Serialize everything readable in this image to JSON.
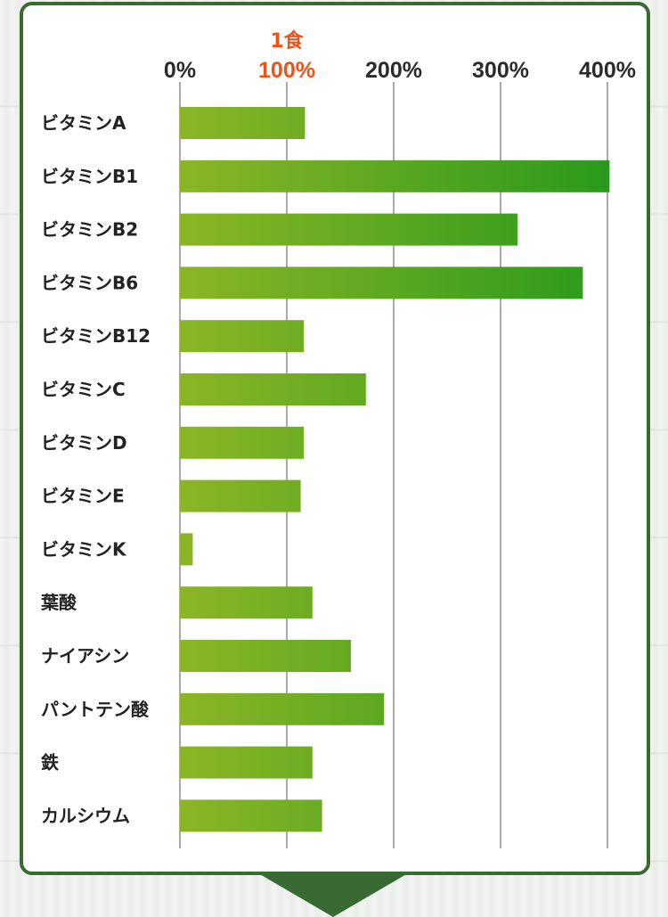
{
  "chart_data": {
    "type": "bar",
    "orientation": "horizontal",
    "categories": [
      "ビタミンA",
      "ビタミンB1",
      "ビタミンB2",
      "ビタミンB6",
      "ビタミンB12",
      "ビタミンC",
      "ビタミンD",
      "ビタミンE",
      "ビタミンK",
      "葉酸",
      "ナイアシン",
      "パントテン酸",
      "鉄",
      "カルシウム"
    ],
    "values": [
      117,
      402,
      316,
      377,
      116,
      174,
      116,
      113,
      12,
      124,
      160,
      191,
      124,
      133
    ],
    "ticks": [
      0,
      100,
      200,
      300,
      400
    ],
    "tick_labels": [
      "0%",
      "100%",
      "200%",
      "300%",
      "400%"
    ],
    "highlight_tick": 100,
    "highlight_note": "1食",
    "xlim": [
      0,
      400
    ],
    "grid": true,
    "title": "",
    "xlabel": "",
    "ylabel": "",
    "colors": {
      "bar_start": "#8bb525",
      "bar_end": "#2a9a1c",
      "highlight": "#e8561e",
      "frame": "#3a6a34",
      "grid": "#555555"
    }
  }
}
